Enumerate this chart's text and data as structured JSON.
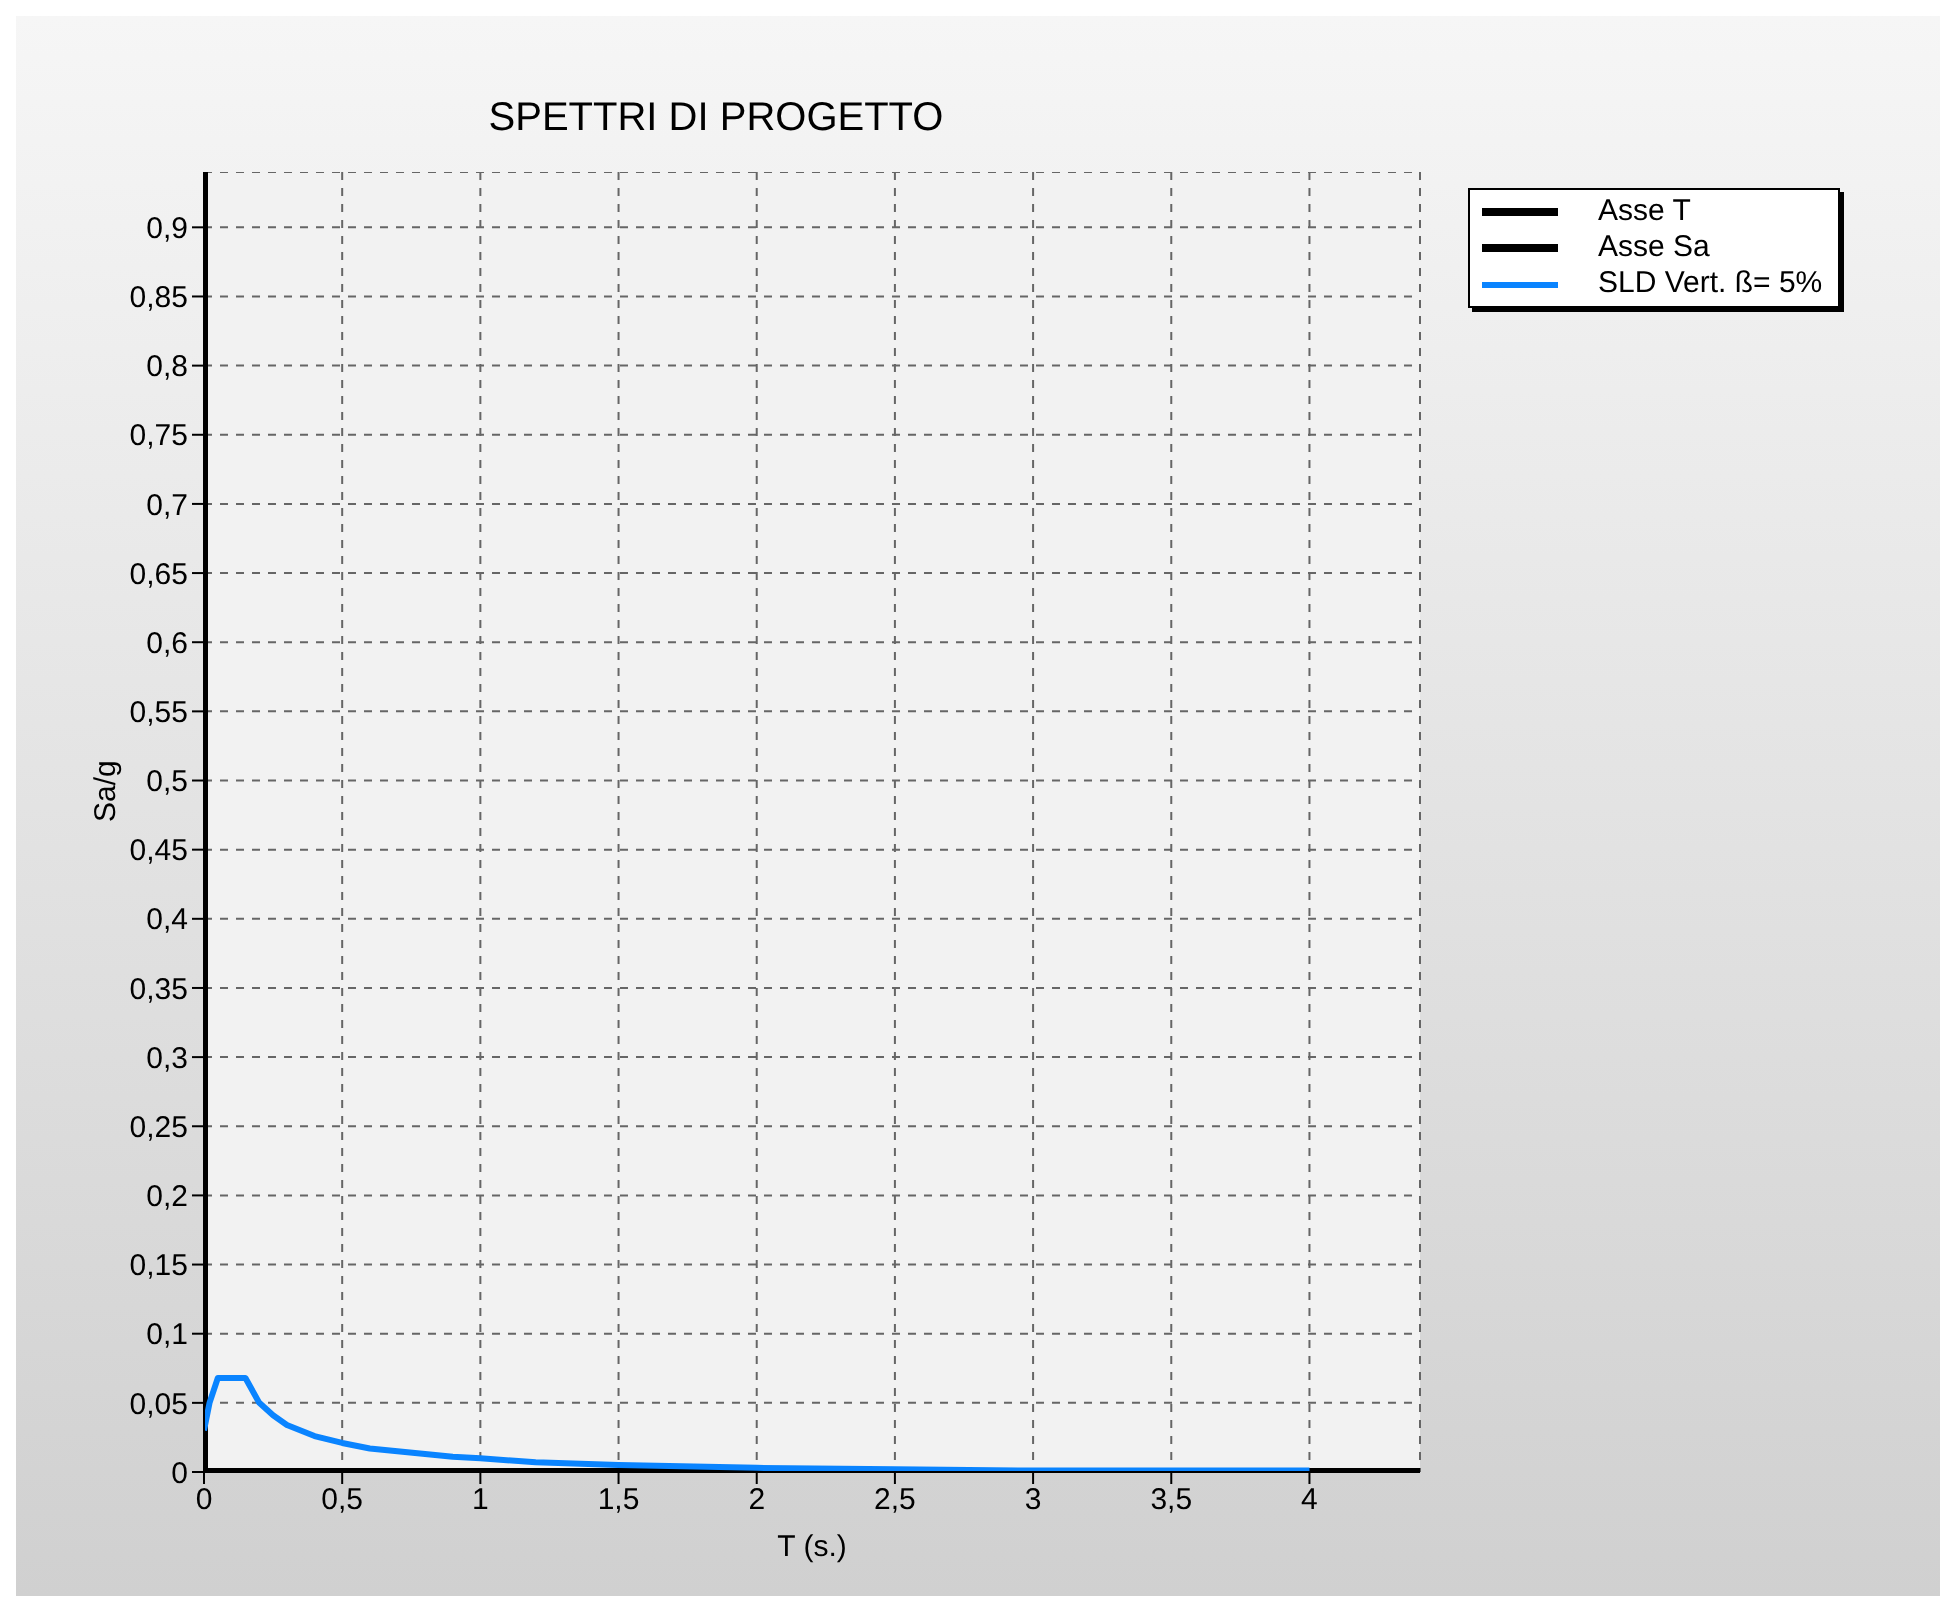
{
  "chart_data": {
    "type": "line",
    "title": "SPETTRI DI PROGETTO",
    "xlabel": "T (s.)",
    "ylabel": "Sa/g",
    "xlim": [
      0,
      4.4
    ],
    "ylim": [
      0,
      0.94
    ],
    "xticks": [
      0,
      {
        "value": 0.5,
        "label": "0,5"
      },
      1,
      {
        "value": 1.5,
        "label": "1,5"
      },
      2,
      {
        "value": 2.5,
        "label": "2,5"
      },
      3,
      {
        "value": 3.5,
        "label": "3,5"
      },
      4
    ],
    "yticks": [
      0,
      {
        "value": 0.05,
        "label": "0,05"
      },
      {
        "value": 0.1,
        "label": "0,1"
      },
      {
        "value": 0.15,
        "label": "0,15"
      },
      {
        "value": 0.2,
        "label": "0,2"
      },
      {
        "value": 0.25,
        "label": "0,25"
      },
      {
        "value": 0.3,
        "label": "0,3"
      },
      {
        "value": 0.35,
        "label": "0,35"
      },
      {
        "value": 0.4,
        "label": "0,4"
      },
      {
        "value": 0.45,
        "label": "0,45"
      },
      {
        "value": 0.5,
        "label": "0,5"
      },
      {
        "value": 0.55,
        "label": "0,55"
      },
      {
        "value": 0.6,
        "label": "0,6"
      },
      {
        "value": 0.65,
        "label": "0,65"
      },
      {
        "value": 0.7,
        "label": "0,7"
      },
      {
        "value": 0.75,
        "label": "0,75"
      },
      {
        "value": 0.8,
        "label": "0,8"
      },
      {
        "value": 0.85,
        "label": "0,85"
      },
      {
        "value": 0.9,
        "label": "0,9"
      }
    ],
    "grid": true,
    "legend": "top right",
    "line_style": "solid",
    "marker": "none",
    "series": [
      {
        "name": "Asse T",
        "color": "#000000",
        "x": [
          0,
          4.4
        ],
        "values": [
          0,
          0
        ]
      },
      {
        "name": "Asse Sa",
        "color": "#000000",
        "x": [
          0,
          0
        ],
        "values": [
          0,
          0.94
        ]
      },
      {
        "name": "SLD Vert. ß= 5%",
        "color": "#0a84ff",
        "x": [
          0,
          0.02,
          0.05,
          0.1,
          0.15,
          0.2,
          0.25,
          0.3,
          0.4,
          0.5,
          0.6,
          0.7,
          0.8,
          0.9,
          1,
          1.2,
          1.5,
          2,
          2.5,
          3,
          3.5,
          4
        ],
        "values": [
          0.03,
          0.05,
          0.068,
          0.068,
          0.068,
          0.05,
          0.041,
          0.034,
          0.026,
          0.021,
          0.017,
          0.015,
          0.013,
          0.011,
          0.01,
          0.007,
          0.005,
          0.003,
          0.002,
          0.001,
          0.001,
          0.001
        ]
      }
    ]
  }
}
